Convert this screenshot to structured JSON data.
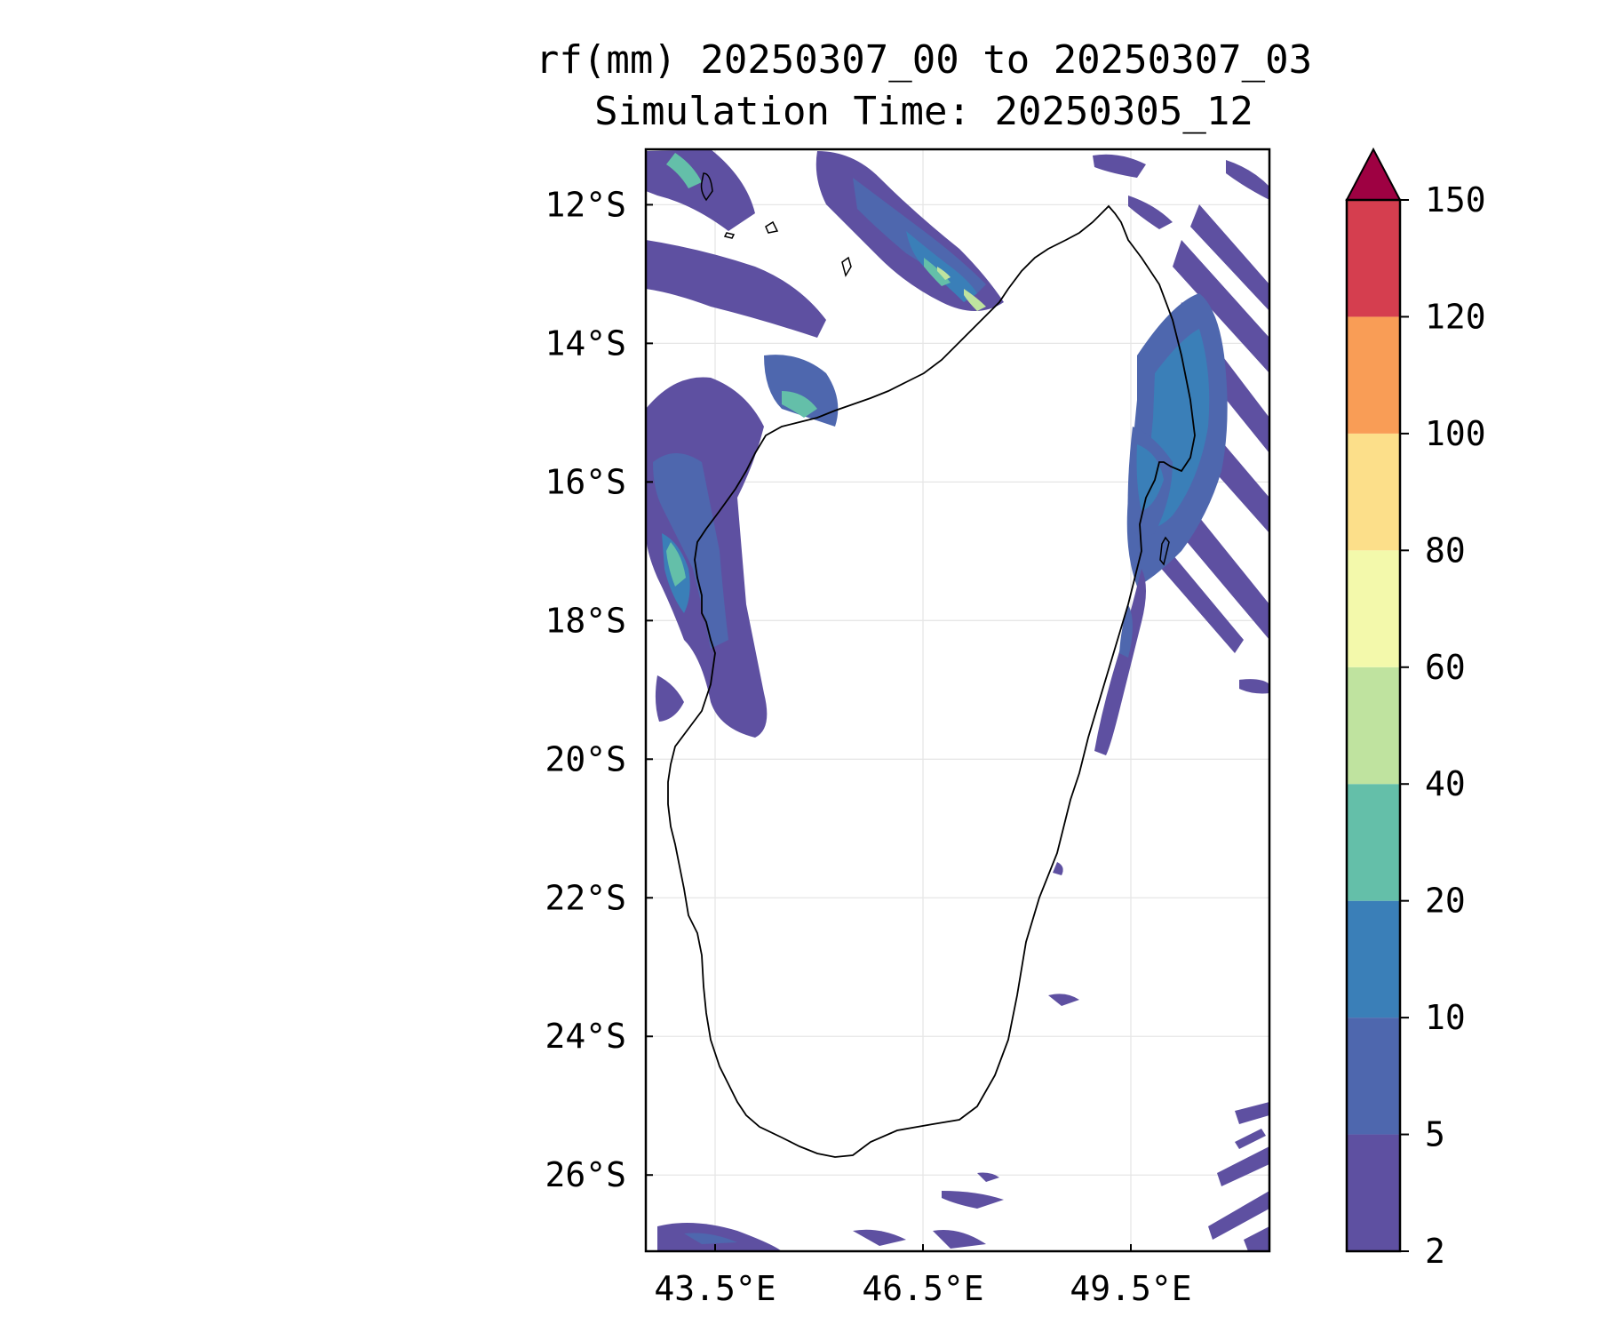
{
  "title": {
    "line1": "rf(mm) 20250307_00 to 20250307_03",
    "line2": "Simulation Time: 20250305_12"
  },
  "map": {
    "lat_ticks": [
      "12°S",
      "14°S",
      "16°S",
      "18°S",
      "20°S",
      "22°S",
      "24°S",
      "26°S"
    ],
    "lon_ticks": [
      "43.5°E",
      "46.5°E",
      "49.5°E"
    ],
    "lat_values": [
      -12,
      -14,
      -16,
      -18,
      -20,
      -22,
      -24,
      -26
    ],
    "lon_values": [
      43.5,
      46.5,
      49.5
    ],
    "lon_range": [
      42.5,
      51.5
    ],
    "lat_range": [
      -11.2,
      -27.1
    ],
    "grid": true
  },
  "colorbar": {
    "levels": [
      "2",
      "5",
      "10",
      "20",
      "40",
      "60",
      "80",
      "100",
      "120",
      "150"
    ],
    "colors": [
      "#5e50a1",
      "#4e67ae",
      "#3a7fb8",
      "#64bfa9",
      "#bfe39f",
      "#f3f9ab",
      "#fcdf8a",
      "#f99d56",
      "#d53e4f",
      "#9e0142"
    ],
    "extend": "max"
  }
}
